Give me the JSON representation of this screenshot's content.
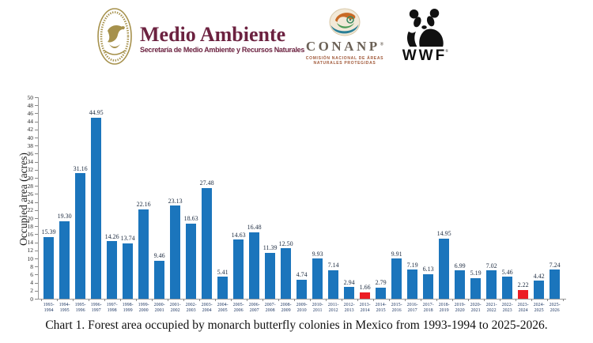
{
  "header": {
    "semarnat": {
      "title": "Medio Ambiente",
      "subtitle": "Secretaría de Medio Ambiente y Recursos Naturales"
    },
    "conanp": {
      "name": "CONANP",
      "reg": "®",
      "subtitle_line1": "COMISIÓN NACIONAL DE ÁREAS",
      "subtitle_line2": "NATURALES PROTEGIDAS"
    },
    "wwf": {
      "name": "WWF",
      "reg": "®"
    }
  },
  "chart_data": {
    "type": "bar",
    "title": "",
    "xlabel": "",
    "ylabel": "Occupied area (acres)",
    "ylim": [
      0,
      50
    ],
    "ytick_step": 2,
    "grid": false,
    "legend": "none",
    "categories": [
      "1993-1994",
      "1994-1995",
      "1995-1996",
      "1996-1997",
      "1997-1998",
      "1998-1999",
      "1999-2000",
      "2000-2001",
      "2001-2002",
      "2002-2003",
      "2003-2004",
      "2004-2005",
      "2005-2006",
      "2006-2007",
      "2007-2008",
      "2008-2009",
      "2009-2010",
      "2010-2011",
      "2011-2012",
      "2012-2013",
      "2013-2014",
      "2014-2015",
      "2015-2016",
      "2016-2017",
      "2017-2018",
      "2018-2019",
      "2019-2020",
      "2020-2021",
      "2021-2022",
      "2022-2023",
      "2023-2024",
      "2024-2025",
      "2025-2026"
    ],
    "values": [
      15.39,
      19.3,
      31.16,
      44.95,
      14.26,
      13.74,
      22.16,
      9.46,
      23.13,
      18.63,
      27.48,
      5.41,
      14.63,
      16.48,
      11.39,
      12.5,
      4.74,
      9.93,
      7.14,
      2.94,
      1.66,
      2.79,
      9.91,
      7.19,
      6.13,
      14.95,
      6.99,
      5.19,
      7.02,
      5.46,
      2.22,
      4.42,
      7.24
    ],
    "bar_color": "#1b75bc",
    "highlight_color": "#ec1c24",
    "highlight_indices": [
      20,
      30
    ],
    "value_label_decimals": 2
  },
  "caption": "Chart 1. Forest area occupied by monarch butterfly colonies in Mexico from 1993-1994 to 2025-2026."
}
